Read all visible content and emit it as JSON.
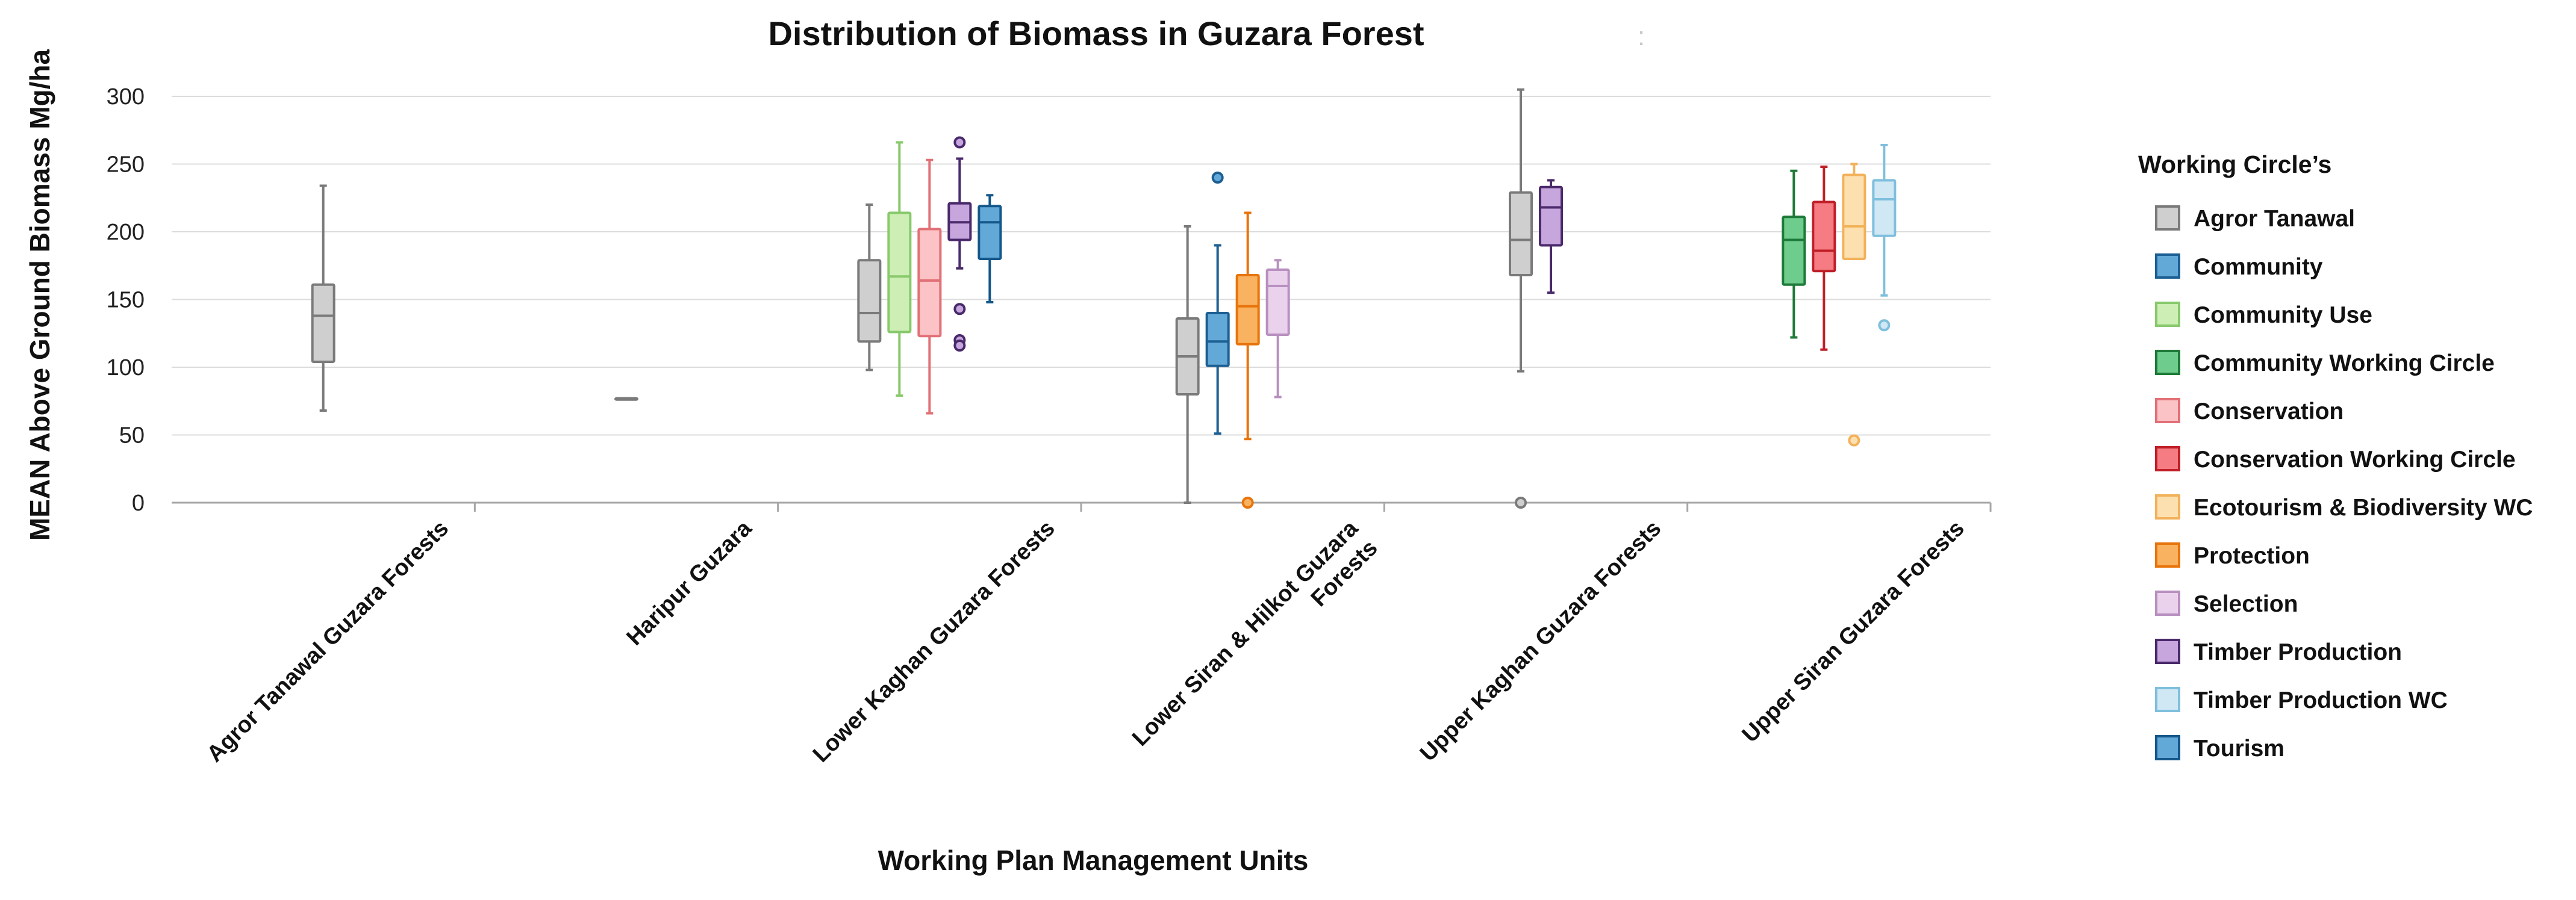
{
  "chart_data": {
    "type": "box",
    "title": "Distribution of Biomass in Guzara Forest",
    "title_suffix": ":",
    "xlabel": "Working Plan Management Units",
    "ylabel": "MEAN Above Ground Biomass Mg/ha",
    "ylim": [
      0,
      300
    ],
    "yticks": [
      0,
      50,
      100,
      150,
      200,
      250,
      300
    ],
    "grid": true,
    "legend_position": "right",
    "legend_title": "Working Circle’s",
    "categories": [
      "Agror Tanawal Guzara Forests",
      "Haripur Guzara",
      "Lower Kaghan Guzara Forests",
      "Lower Siran & Hilkot Guzara Forests",
      "Upper Kaghan Guzara Forests",
      "Upper Siran Guzara Forests"
    ],
    "series": [
      {
        "name": "Agror Tanawal",
        "fill": "#cfcfcf",
        "stroke": "#7a7a7a"
      },
      {
        "name": "Community",
        "fill": "#63a9d8",
        "stroke": "#1c5f93"
      },
      {
        "name": "Community Use",
        "fill": "#cdeeb4",
        "stroke": "#88c96b"
      },
      {
        "name": "Community Working Circle",
        "fill": "#6ecd8c",
        "stroke": "#1e7a38"
      },
      {
        "name": "Conservation",
        "fill": "#fbc3c5",
        "stroke": "#e27077"
      },
      {
        "name": "Conservation Working Circle",
        "fill": "#f47c82",
        "stroke": "#c01f28"
      },
      {
        "name": "Ecotourism & Biodiversity WC",
        "fill": "#fde0b0",
        "stroke": "#f2b25b"
      },
      {
        "name": "Protection",
        "fill": "#f9b25f",
        "stroke": "#e8740c"
      },
      {
        "name": "Selection",
        "fill": "#ead2ec",
        "stroke": "#b890c0"
      },
      {
        "name": "Timber Production",
        "fill": "#c6a6dd",
        "stroke": "#4a2a6b"
      },
      {
        "name": "Timber Production WC",
        "fill": "#cfe8f4",
        "stroke": "#7fbfdd"
      },
      {
        "name": "Tourism",
        "fill": "#63a9d8",
        "stroke": "#14578a"
      }
    ],
    "boxes": [
      {
        "category": "Agror Tanawal Guzara Forests",
        "series": "Agror Tanawal",
        "min": 68,
        "q1": 104,
        "median": 138,
        "q3": 161,
        "max": 234,
        "outliers": []
      },
      {
        "category": "Haripur Guzara",
        "series": "Agror Tanawal",
        "min": 77,
        "q1": 77,
        "median": 77,
        "q3": 77,
        "max": 77,
        "outliers": []
      },
      {
        "category": "Lower Kaghan Guzara Forests",
        "series": "Agror Tanawal",
        "min": 98,
        "q1": 119,
        "median": 140,
        "q3": 179,
        "max": 220,
        "outliers": []
      },
      {
        "category": "Lower Kaghan Guzara Forests",
        "series": "Community Use",
        "min": 79,
        "q1": 126,
        "median": 167,
        "q3": 214,
        "max": 266,
        "outliers": []
      },
      {
        "category": "Lower Kaghan Guzara Forests",
        "series": "Conservation",
        "min": 66,
        "q1": 123,
        "median": 164,
        "q3": 202,
        "max": 253,
        "outliers": []
      },
      {
        "category": "Lower Kaghan Guzara Forests",
        "series": "Timber Production",
        "min": 173,
        "q1": 194,
        "median": 207,
        "q3": 221,
        "max": 254,
        "outliers": [
          266,
          143,
          120,
          116
        ]
      },
      {
        "category": "Lower Kaghan Guzara Forests",
        "series": "Tourism",
        "min": 148,
        "q1": 180,
        "median": 207,
        "q3": 219,
        "max": 227,
        "outliers": []
      },
      {
        "category": "Lower Siran & Hilkot Guzara Forests",
        "series": "Agror Tanawal",
        "min": 0,
        "q1": 80,
        "median": 108,
        "q3": 136,
        "max": 204,
        "outliers": []
      },
      {
        "category": "Lower Siran & Hilkot Guzara Forests",
        "series": "Community",
        "min": 51,
        "q1": 101,
        "median": 119,
        "q3": 140,
        "max": 190,
        "outliers": [
          240
        ]
      },
      {
        "category": "Lower Siran & Hilkot Guzara Forests",
        "series": "Protection",
        "min": 47,
        "q1": 117,
        "median": 145,
        "q3": 168,
        "max": 214,
        "outliers": [
          0
        ]
      },
      {
        "category": "Lower Siran & Hilkot Guzara Forests",
        "series": "Selection",
        "min": 78,
        "q1": 124,
        "median": 160,
        "q3": 172,
        "max": 179,
        "outliers": []
      },
      {
        "category": "Upper Kaghan Guzara Forests",
        "series": "Agror Tanawal",
        "min": 97,
        "q1": 168,
        "median": 194,
        "q3": 229,
        "max": 305,
        "outliers": [
          0
        ]
      },
      {
        "category": "Upper Kaghan Guzara Forests",
        "series": "Timber Production",
        "min": 155,
        "q1": 190,
        "median": 218,
        "q3": 233,
        "max": 238,
        "outliers": []
      },
      {
        "category": "Upper Siran Guzara Forests",
        "series": "Community Working Circle",
        "min": 122,
        "q1": 161,
        "median": 194,
        "q3": 211,
        "max": 245,
        "outliers": []
      },
      {
        "category": "Upper Siran Guzara Forests",
        "series": "Conservation Working Circle",
        "min": 113,
        "q1": 171,
        "median": 186,
        "q3": 222,
        "max": 248,
        "outliers": []
      },
      {
        "category": "Upper Siran Guzara Forests",
        "series": "Ecotourism & Biodiversity WC",
        "min": 180,
        "q1": 180,
        "median": 204,
        "q3": 242,
        "max": 250,
        "outliers": [
          46
        ]
      },
      {
        "category": "Upper Siran Guzara Forests",
        "series": "Timber Production WC",
        "min": 153,
        "q1": 197,
        "median": 224,
        "q3": 238,
        "max": 264,
        "outliers": [
          131
        ]
      }
    ]
  }
}
